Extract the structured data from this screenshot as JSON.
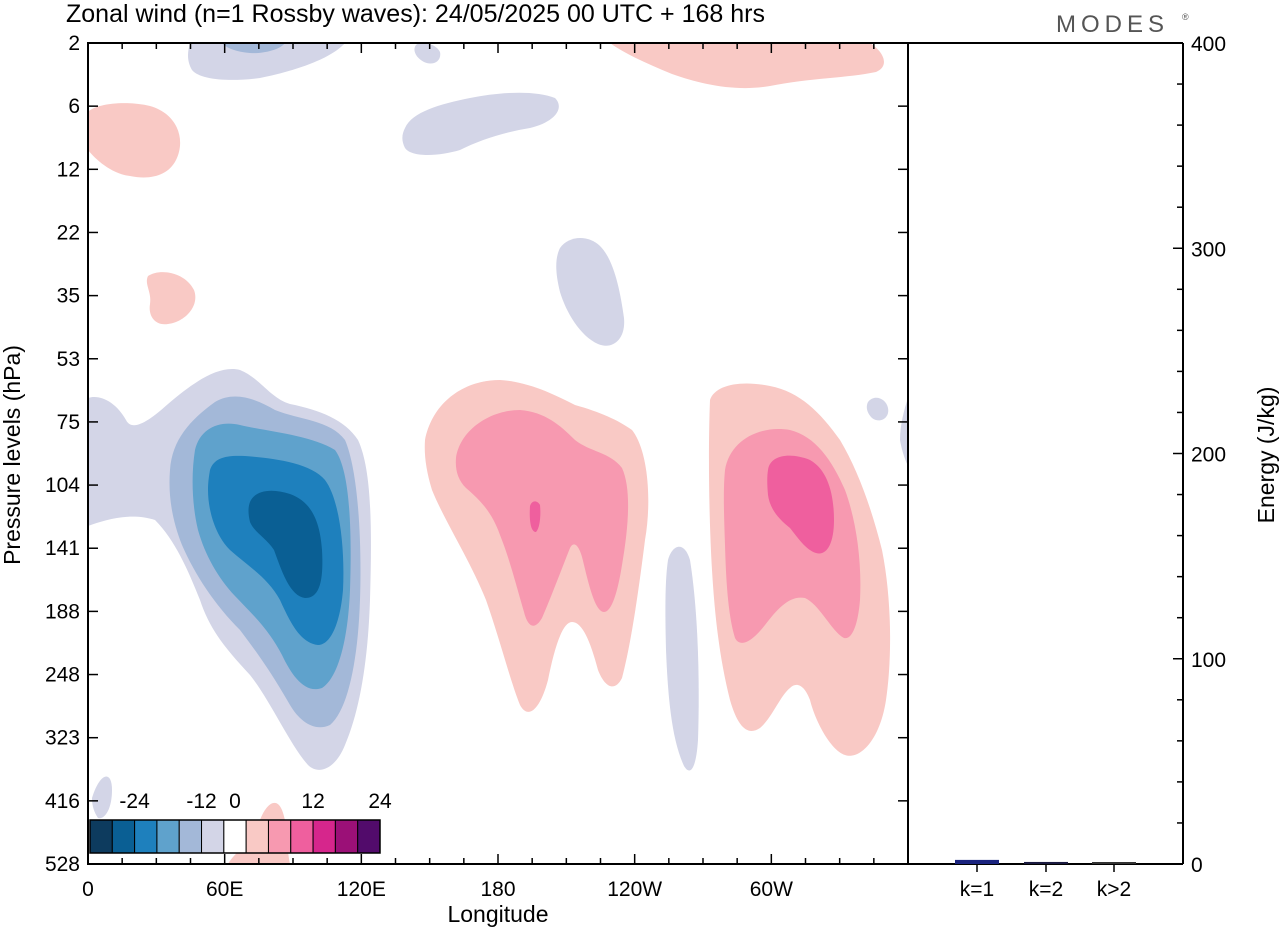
{
  "title": "Zonal wind (n=1 Rossby waves):  24/05/2025  00 UTC  + 168 hrs",
  "brand": "MODES",
  "brand_mark": "®",
  "chart_data": [
    {
      "type": "contour",
      "xlabel": "Longitude",
      "ylabel": "Pressure levels (hPa)",
      "x_ticks": [
        "0",
        "60E",
        "120E",
        "180",
        "120W",
        "60W"
      ],
      "x_tick_degrees": [
        0,
        60,
        120,
        180,
        240,
        300
      ],
      "x_range_degrees": [
        0,
        360
      ],
      "y_ticks": [
        "2",
        "6",
        "12",
        "22",
        "35",
        "53",
        "75",
        "104",
        "141",
        "188",
        "248",
        "323",
        "416",
        "528"
      ],
      "colorbar": {
        "tick_labels": [
          "-24",
          "-12",
          "0",
          "12",
          "24"
        ],
        "tick_values": [
          -24,
          -12,
          0,
          12,
          24
        ],
        "levels": [
          -28,
          -24,
          -20,
          -16,
          -12,
          -8,
          -4,
          4,
          8,
          12,
          16,
          20,
          24,
          28
        ],
        "colors": [
          "#0d3b5e",
          "#0a5f94",
          "#1e80bd",
          "#5fa2cc",
          "#a3b8d8",
          "#d3d5e7",
          "#ffffff",
          "#f9c9c5",
          "#f799b0",
          "#ef5f9e",
          "#d6268c",
          "#9b1077",
          "#520b6b"
        ]
      },
      "features": [
        {
          "sign": "negative",
          "min_value": -24,
          "longitude_deg": 80,
          "pressure_hPa": 141
        },
        {
          "sign": "positive",
          "max_value": 16,
          "longitude_deg": 195,
          "pressure_hPa": 120
        },
        {
          "sign": "positive",
          "max_value": 12,
          "longitude_deg": 320,
          "pressure_hPa": 120
        },
        {
          "sign": "negative",
          "min_value": -4,
          "longitude_deg": 260,
          "pressure_hPa": 250
        }
      ]
    },
    {
      "type": "bar",
      "ylabel": "Energy (J/kg)",
      "categories": [
        "k=1",
        "k=2",
        "k>2"
      ],
      "values": [
        2,
        1,
        0.5
      ],
      "ylim": [
        0,
        400
      ],
      "y_ticks": [
        0,
        100,
        200,
        300,
        400
      ],
      "colors": [
        "#1a237e",
        "#1a1a40",
        "#333333"
      ]
    }
  ]
}
